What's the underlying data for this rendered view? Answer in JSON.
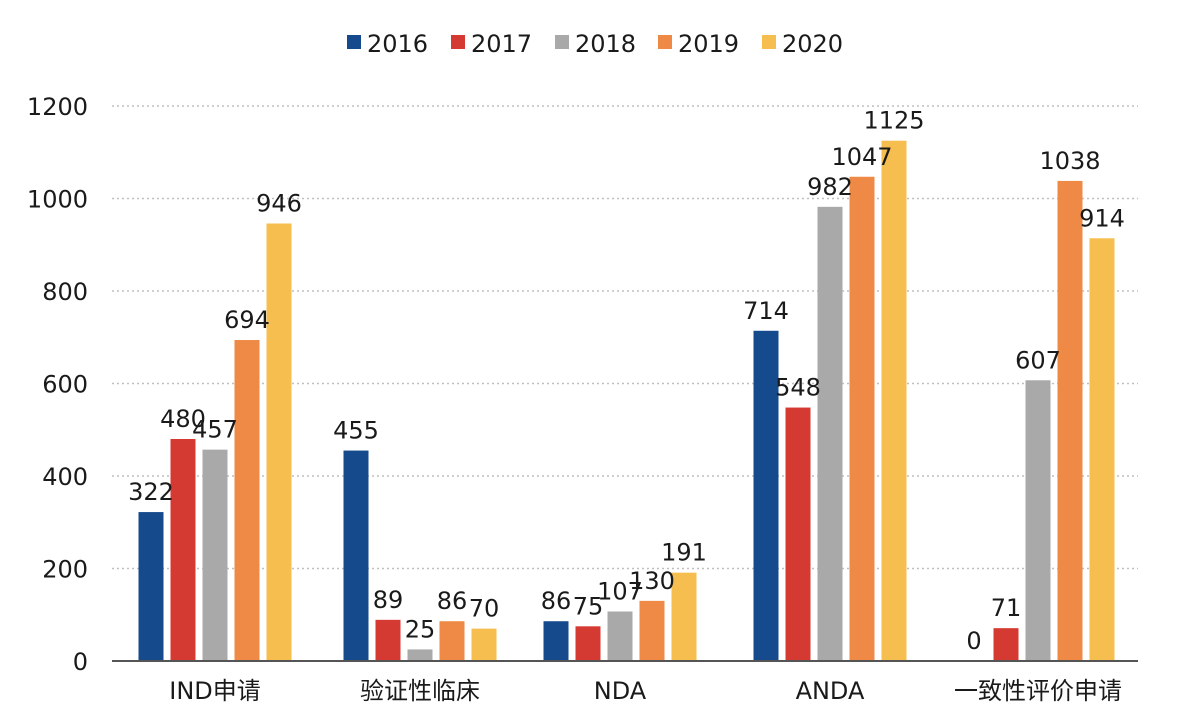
{
  "chart_data": {
    "type": "bar",
    "categories": [
      "IND申请",
      "验证性临床",
      "NDA",
      "ANDA",
      "一致性评价申请"
    ],
    "series": [
      {
        "name": "2016",
        "color": "#154A8C",
        "values": [
          322,
          455,
          86,
          714,
          0
        ]
      },
      {
        "name": "2017",
        "color": "#D43A31",
        "values": [
          480,
          89,
          75,
          548,
          71
        ]
      },
      {
        "name": "2018",
        "color": "#A9A9A9",
        "values": [
          457,
          25,
          107,
          982,
          607
        ]
      },
      {
        "name": "2019",
        "color": "#EE8A45",
        "values": [
          694,
          86,
          130,
          1047,
          1038
        ]
      },
      {
        "name": "2020",
        "color": "#F6BE4E",
        "values": [
          946,
          70,
          191,
          1125,
          914
        ]
      }
    ],
    "yticks": [
      "0",
      "200",
      "400",
      "600",
      "800",
      "1000",
      "1200"
    ],
    "ylim": [
      0,
      1200
    ],
    "grid": true,
    "legend": "top-center"
  }
}
